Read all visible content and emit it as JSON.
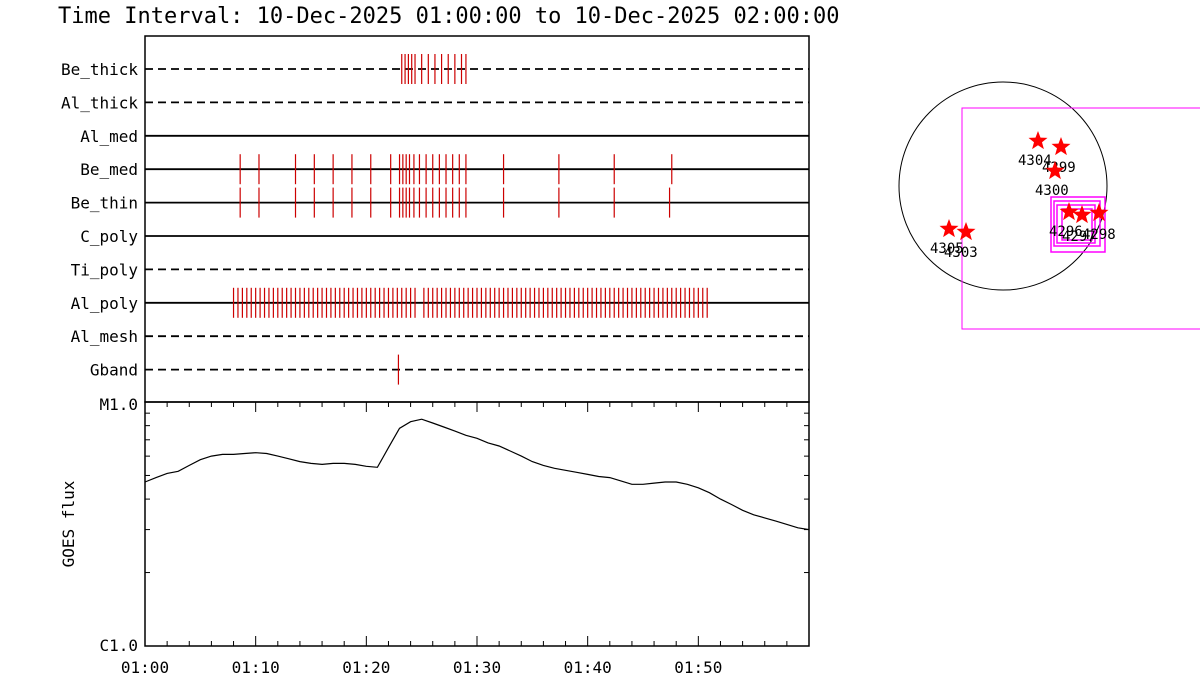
{
  "title": "Time Interval: 10-Dec-2025 01:00:00 to 10-Dec-2025 02:00:00",
  "colors": {
    "axis": "#000000",
    "event": "#cc0000",
    "star": "#ff0000",
    "box": "#ff00ff"
  },
  "chart_data": [
    {
      "type": "event-timeline",
      "x_range": [
        "01:00",
        "02:00"
      ],
      "rows": [
        {
          "label": "Be_thick",
          "style": "dashed",
          "events": [
            23.2,
            23.5,
            23.8,
            24.1,
            24.4,
            25.0,
            25.6,
            26.2,
            26.8,
            27.4,
            28.0,
            28.6,
            29.0
          ]
        },
        {
          "label": "Al_thick",
          "style": "dashed",
          "events": []
        },
        {
          "label": "Al_med",
          "style": "solid",
          "events": []
        },
        {
          "label": "Be_med",
          "style": "solid",
          "events": [
            8.6,
            10.3,
            13.6,
            15.3,
            17.0,
            18.7,
            20.4,
            22.2,
            23.0,
            23.3,
            23.6,
            23.9,
            24.3,
            24.8,
            25.4,
            26.0,
            26.6,
            27.2,
            27.8,
            28.4,
            29.0,
            32.4,
            37.4,
            42.4,
            47.6
          ]
        },
        {
          "label": "Be_thin",
          "style": "solid",
          "events": [
            8.6,
            10.3,
            13.6,
            15.3,
            17.0,
            18.7,
            20.4,
            22.2,
            23.0,
            23.3,
            23.6,
            23.9,
            24.3,
            24.8,
            25.4,
            26.0,
            26.6,
            27.2,
            27.8,
            28.4,
            29.0,
            32.4,
            37.4,
            42.4,
            47.4
          ]
        },
        {
          "label": "C_poly",
          "style": "solid",
          "events": []
        },
        {
          "label": "Ti_poly",
          "style": "dashed",
          "events": []
        },
        {
          "label": "Al_poly",
          "style": "solid",
          "events": [
            8.0,
            8.4,
            8.8,
            9.2,
            9.6,
            10.0,
            10.4,
            10.8,
            11.2,
            11.6,
            12.0,
            12.4,
            12.8,
            13.2,
            13.6,
            14.0,
            14.4,
            14.8,
            15.2,
            15.6,
            16.0,
            16.4,
            16.8,
            17.2,
            17.6,
            18.0,
            18.4,
            18.8,
            19.2,
            19.6,
            20.0,
            20.4,
            20.8,
            21.2,
            21.6,
            22.0,
            22.4,
            22.8,
            23.2,
            23.6,
            24.0,
            24.4,
            25.2,
            25.6,
            26.0,
            26.4,
            26.8,
            27.2,
            27.6,
            28.0,
            28.4,
            28.8,
            29.2,
            29.6,
            30.0,
            30.4,
            30.8,
            31.2,
            31.6,
            32.0,
            32.4,
            32.8,
            33.2,
            33.6,
            34.0,
            34.4,
            34.8,
            35.2,
            35.6,
            36.0,
            36.4,
            36.8,
            37.2,
            37.6,
            38.0,
            38.4,
            38.8,
            39.2,
            39.6,
            40.0,
            40.4,
            40.8,
            41.2,
            41.6,
            42.0,
            42.4,
            42.8,
            43.2,
            43.6,
            44.0,
            44.4,
            44.8,
            45.2,
            45.6,
            46.0,
            46.4,
            46.8,
            47.2,
            47.6,
            48.0,
            48.4,
            48.8,
            49.2,
            49.6,
            50.0,
            50.4,
            50.8
          ]
        },
        {
          "label": "Al_mesh",
          "style": "dashed",
          "events": []
        },
        {
          "label": "Gband",
          "style": "dashed",
          "events": [
            22.9
          ]
        }
      ]
    },
    {
      "type": "line",
      "ylabel": "GOES flux",
      "y_scale": "log",
      "ytick_labels": [
        "M1.0",
        "C1.0"
      ],
      "xtick_labels": [
        "01:00",
        "01:10",
        "01:20",
        "01:30",
        "01:40",
        "01:50"
      ],
      "x_minutes": [
        0,
        1,
        2,
        3,
        4,
        5,
        6,
        7,
        8,
        9,
        10,
        11,
        12,
        13,
        14,
        15,
        16,
        17,
        18,
        19,
        20,
        21,
        22,
        23,
        24,
        25,
        26,
        27,
        28,
        29,
        30,
        31,
        32,
        33,
        34,
        35,
        36,
        37,
        38,
        39,
        40,
        41,
        42,
        43,
        44,
        45,
        46,
        47,
        48,
        49,
        50,
        51,
        52,
        53,
        54,
        55,
        56,
        57,
        58,
        59,
        60
      ],
      "y_flux": [
        "4.7e-6",
        "4.9e-6",
        "5.1e-6",
        "5.2e-6",
        "5.5e-6",
        "5.8e-6",
        "6.0e-6",
        "6.1e-6",
        "6.1e-6",
        "6.15e-6",
        "6.2e-6",
        "6.15e-6",
        "6.0e-6",
        "5.85e-6",
        "5.7e-6",
        "5.6e-6",
        "5.55e-6",
        "5.6e-6",
        "5.6e-6",
        "5.55e-6",
        "5.45e-6",
        "5.4e-6",
        "6.5e-6",
        "7.8e-6",
        "8.3e-6",
        "8.5e-6",
        "8.2e-6",
        "7.9e-6",
        "7.6e-6",
        "7.3e-6",
        "7.1e-6",
        "6.8e-6",
        "6.6e-6",
        "6.3e-6",
        "6.0e-6",
        "5.7e-6",
        "5.5e-6",
        "5.35e-6",
        "5.25e-6",
        "5.15e-6",
        "5.05e-6",
        "4.95e-6",
        "4.9e-6",
        "4.75e-6",
        "4.6e-6",
        "4.6e-6",
        "4.65e-6",
        "4.7e-6",
        "4.7e-6",
        "4.6e-6",
        "4.45e-6",
        "4.25e-6",
        "4.0e-6",
        "3.8e-6",
        "3.6e-6",
        "3.45e-6",
        "3.35e-6",
        "3.25e-6",
        "3.15e-6",
        "3.05e-6",
        "3.0e-6"
      ]
    }
  ],
  "region_map": {
    "stars": [
      {
        "label": "4304"
      },
      {
        "label": "4299"
      },
      {
        "label": "4300"
      },
      {
        "label": "4296"
      },
      {
        "label": "4297"
      },
      {
        "label": "4298"
      },
      {
        "label": "4305"
      },
      {
        "label": "4303"
      }
    ]
  }
}
